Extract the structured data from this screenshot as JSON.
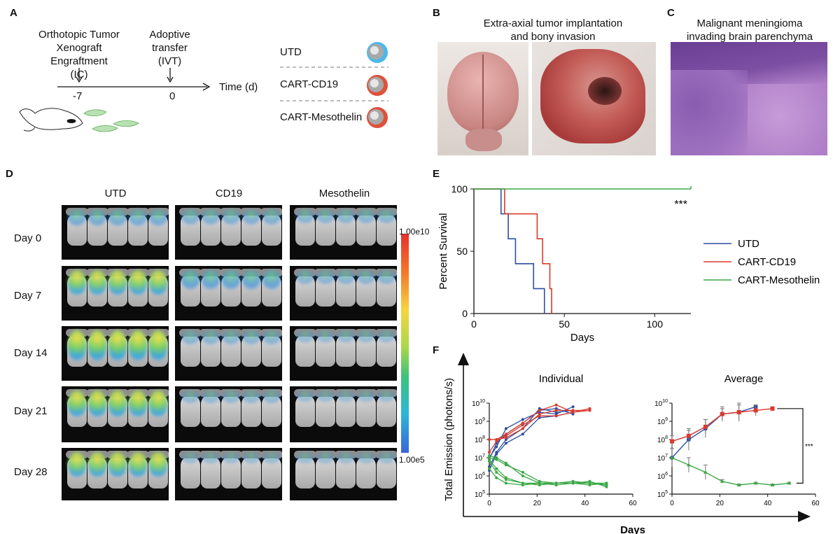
{
  "panel_labels": {
    "a": "A",
    "b": "B",
    "c": "C",
    "d": "D",
    "e": "E",
    "f": "F"
  },
  "panel_a": {
    "engraft_line1": "Orthotopic Tumor",
    "engraft_line2": "Xenograft Engraftment",
    "engraft_line3": "(IC)",
    "transfer_line1": "Adoptive",
    "transfer_line2": "transfer",
    "transfer_line3": "(IVT)",
    "tick_1": "-7",
    "tick_2": "0",
    "axis_label": "Time (d)",
    "groups": [
      "UTD",
      "CART-CD19",
      "CART-Mesothelin"
    ],
    "colors": {
      "utd": "#4fb8e8",
      "cd19": "#e0503a",
      "meso": "#e0503a",
      "cell": "#9e9e9e",
      "mouse": "#222222"
    }
  },
  "panel_b": {
    "title_line1": "Extra-axial tumor implantation",
    "title_line2": "and bony invasion"
  },
  "panel_c": {
    "title_line1": "Malignant meningioma",
    "title_line2": "invading brain parenchyma"
  },
  "panel_d": {
    "columns": [
      "UTD",
      "CD19",
      "Mesothelin"
    ],
    "rows": [
      "Day 0",
      "Day 7",
      "Day 14",
      "Day 21",
      "Day 28"
    ],
    "scale_max": "1.00e10",
    "scale_min": "1.00e5"
  },
  "chart_data": [
    {
      "type": "line",
      "title": "",
      "xlabel": "Days",
      "ylabel": "Percent Survival",
      "xlim": [
        0,
        120
      ],
      "ylim": [
        0,
        100
      ],
      "xticks": [
        "0",
        "50",
        "100"
      ],
      "yticks": [
        "0",
        "50",
        "100"
      ],
      "annotation": "***",
      "series": [
        {
          "name": "UTD",
          "color": "#2d4fa3",
          "x": [
            0,
            15,
            15,
            19,
            19,
            23,
            23,
            33,
            33,
            39,
            39
          ],
          "y": [
            100,
            100,
            80,
            80,
            60,
            60,
            40,
            40,
            20,
            20,
            0
          ]
        },
        {
          "name": "CART-CD19",
          "color": "#d83a2e",
          "x": [
            0,
            17,
            17,
            35,
            35,
            38,
            38,
            42,
            42,
            43,
            43
          ],
          "y": [
            100,
            100,
            80,
            80,
            60,
            60,
            40,
            40,
            20,
            20,
            0
          ]
        },
        {
          "name": "CART-Mesothelin",
          "color": "#3aa846",
          "x": [
            0,
            120
          ],
          "y": [
            100,
            100
          ]
        }
      ]
    },
    {
      "type": "line",
      "title": "Individual",
      "xlabel": "Days",
      "ylabel": "Total Emission (photons/s)",
      "xlim": [
        0,
        60
      ],
      "ylim_log10": [
        5,
        10
      ],
      "xticks": [
        "0",
        "20",
        "40",
        "60"
      ],
      "yticks": [
        "10^5",
        "10^6",
        "10^7",
        "10^8",
        "10^9",
        "10^10"
      ],
      "x": [
        0,
        3,
        7,
        14,
        21,
        28,
        35,
        42,
        49
      ],
      "series": [
        {
          "name": "UTD",
          "color": "#2d4fa3",
          "values_log10": [
            [
              6.5,
              7.3,
              8.0,
              8.6,
              9.7,
              9.5,
              9.6
            ],
            [
              7.0,
              7.6,
              8.6,
              9.1,
              9.5,
              9.4,
              9.8
            ],
            [
              6.3,
              7.2,
              7.8,
              8.3,
              9.2,
              9.3,
              9.5
            ],
            [
              6.9,
              7.8,
              8.3,
              8.9,
              9.6,
              9.7,
              9.4
            ]
          ]
        },
        {
          "name": "CART-CD19",
          "color": "#d83a2e",
          "values_log10": [
            [
              8.0,
              8.0,
              8.3,
              8.9,
              9.6,
              9.9,
              9.5,
              9.7
            ],
            [
              8.0,
              8.0,
              8.1,
              8.6,
              9.4,
              9.6,
              9.6,
              9.6
            ],
            [
              7.3,
              7.9,
              8.2,
              8.8,
              9.3,
              9.3,
              9.5,
              9.6
            ]
          ]
        },
        {
          "name": "CART-Mesothelin",
          "color": "#3aa846",
          "values_log10": [
            [
              6.8,
              6.2,
              5.8,
              5.6,
              5.6,
              5.6,
              5.7,
              5.6,
              5.5
            ],
            [
              7.0,
              6.9,
              6.6,
              6.2,
              5.7,
              5.6,
              5.6,
              5.6,
              5.6
            ],
            [
              6.4,
              5.9,
              5.6,
              5.5,
              5.6,
              5.6,
              5.6,
              5.5,
              5.6
            ],
            [
              6.9,
              6.4,
              5.9,
              5.6,
              5.5,
              5.6,
              5.6,
              5.7,
              5.4
            ],
            [
              7.1,
              7.0,
              6.7,
              6.0,
              5.6,
              5.5,
              5.6,
              5.6,
              5.5
            ]
          ]
        }
      ]
    },
    {
      "type": "line",
      "title": "Average",
      "xlabel": "Days",
      "xlim": [
        0,
        60
      ],
      "ylim_log10": [
        5,
        10
      ],
      "xticks": [
        "0",
        "20",
        "40",
        "60"
      ],
      "yticks": [
        "10^5",
        "10^6",
        "10^7",
        "10^8",
        "10^9",
        "10^10"
      ],
      "annotation": "***",
      "series": [
        {
          "name": "UTD",
          "color": "#2d4fa3",
          "x": [
            0,
            7,
            14,
            21,
            28,
            35
          ],
          "values_log10": [
            7.0,
            8.0,
            8.6,
            9.4,
            9.5,
            9.8
          ],
          "err_log10": [
            0.5,
            0.6,
            0.5,
            0.4,
            0.4,
            0.1
          ]
        },
        {
          "name": "CART-CD19",
          "color": "#d83a2e",
          "x": [
            0,
            7,
            14,
            21,
            28,
            35,
            42
          ],
          "values_log10": [
            7.9,
            8.2,
            8.7,
            9.4,
            9.5,
            9.6,
            9.7
          ],
          "err_log10": [
            0.3,
            0.3,
            0.4,
            0.3,
            0.5,
            0.3,
            0.1
          ]
        },
        {
          "name": "CART-Mesothelin",
          "color": "#3aa846",
          "x": [
            0,
            7,
            14,
            21,
            28,
            35,
            42,
            49
          ],
          "values_log10": [
            7.0,
            6.6,
            6.2,
            5.7,
            5.5,
            5.6,
            5.5,
            5.6
          ],
          "err_log10": [
            0.5,
            0.4,
            0.4,
            0.1,
            0.05,
            0.05,
            0.05,
            0.05
          ]
        }
      ]
    }
  ],
  "panel_f_axis": {
    "y_title": "Total Emission (photons/s)",
    "x_title": "Days"
  }
}
